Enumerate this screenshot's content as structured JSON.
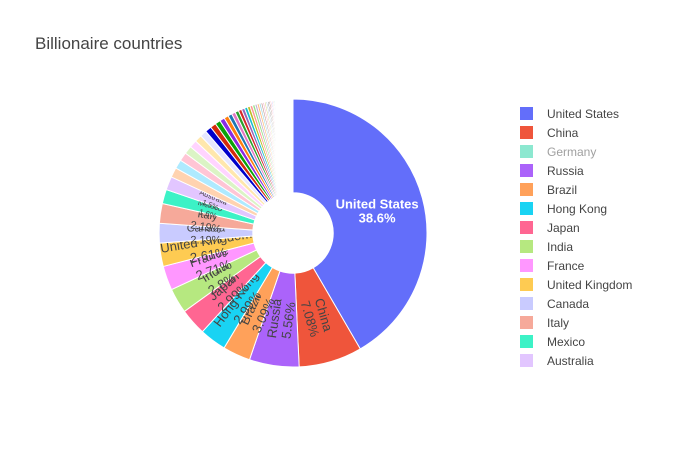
{
  "chart_data": {
    "type": "pie",
    "title": "Billionaire countries",
    "hole": 0.3,
    "legend_position": "right",
    "slices": [
      {
        "label": "United States",
        "percent": 38.6,
        "color": "#636efa"
      },
      {
        "label": "China",
        "percent": 7.08,
        "color": "#ef553b"
      },
      {
        "label": "Russia",
        "percent": 5.56,
        "color": "#ab63fa"
      },
      {
        "label": "Brazil",
        "percent": 3.09,
        "color": "#ffa15a"
      },
      {
        "label": "Hong Kong",
        "percent": 2.99,
        "color": "#19d3f3"
      },
      {
        "label": "Japan",
        "percent": 2.99,
        "color": "#ff6692"
      },
      {
        "label": "India",
        "percent": 2.8,
        "color": "#b6e880"
      },
      {
        "label": "France",
        "percent": 2.71,
        "color": "#ff97ff"
      },
      {
        "label": "United Kingdom",
        "percent": 2.61,
        "color": "#fecb52"
      },
      {
        "label": "Canada",
        "percent": 2.19,
        "color": "#c9cbff"
      },
      {
        "label": "Italy",
        "percent": 2.19,
        "color": "#f6a99a"
      },
      {
        "label": "Mexico",
        "percent": 1.6,
        "color": "#3cf2c6"
      },
      {
        "label": "Australia",
        "percent": 1.5,
        "color": "#e2c6ff"
      },
      {
        "label": "",
        "percent": 1.1,
        "color": "#ffd3b0"
      },
      {
        "label": "",
        "percent": 1.0,
        "color": "#aeeaff"
      },
      {
        "label": "",
        "percent": 0.95,
        "color": "#ffc5d5"
      },
      {
        "label": "",
        "percent": 0.9,
        "color": "#dbf4c5"
      },
      {
        "label": "",
        "percent": 0.85,
        "color": "#ffd4ff"
      },
      {
        "label": "",
        "percent": 0.8,
        "color": "#ffe7ad"
      },
      {
        "label": "",
        "percent": 0.75,
        "color": "#e6e7ff"
      },
      {
        "label": "",
        "percent": 0.7,
        "color": "#0000cc"
      },
      {
        "label": "",
        "percent": 0.65,
        "color": "#d42b0a"
      },
      {
        "label": "",
        "percent": 0.6,
        "color": "#0aa30a"
      },
      {
        "label": "",
        "percent": 0.55,
        "color": "#8a2be2"
      },
      {
        "label": "",
        "percent": 0.5,
        "color": "#ff7f0e"
      },
      {
        "label": "",
        "percent": 0.45,
        "color": "#1f77b4"
      },
      {
        "label": "",
        "percent": 0.42,
        "color": "#e377c2"
      },
      {
        "label": "",
        "percent": 0.4,
        "color": "#2ca02c"
      },
      {
        "label": "",
        "percent": 0.37,
        "color": "#d62728"
      },
      {
        "label": "",
        "percent": 0.35,
        "color": "#9467bd"
      },
      {
        "label": "",
        "percent": 0.33,
        "color": "#17becf"
      },
      {
        "label": "",
        "percent": 0.31,
        "color": "#bcbd22"
      },
      {
        "label": "",
        "percent": 0.29,
        "color": "#ff9896"
      },
      {
        "label": "",
        "percent": 0.27,
        "color": "#98df8a"
      },
      {
        "label": "",
        "percent": 0.25,
        "color": "#c5b0d5"
      },
      {
        "label": "",
        "percent": 0.23,
        "color": "#ffbb78"
      },
      {
        "label": "",
        "percent": 0.21,
        "color": "#9edae5"
      },
      {
        "label": "",
        "percent": 0.2,
        "color": "#c49c94"
      },
      {
        "label": "",
        "percent": 0.19,
        "color": "#f7b6d2"
      },
      {
        "label": "",
        "percent": 0.18,
        "color": "#dbdb8d"
      },
      {
        "label": "",
        "percent": 0.17,
        "color": "#aec7e8"
      },
      {
        "label": "",
        "percent": 0.16,
        "color": "#7f7f7f"
      },
      {
        "label": "",
        "percent": 0.15,
        "color": "#8c564b"
      },
      {
        "label": "",
        "percent": 0.14,
        "color": "#ff6692"
      },
      {
        "label": "",
        "percent": 0.13,
        "color": "#636efa"
      },
      {
        "label": "",
        "percent": 0.12,
        "color": "#ef553b"
      },
      {
        "label": "",
        "percent": 0.12,
        "color": "#00cc96"
      },
      {
        "label": "",
        "percent": 0.11,
        "color": "#ab63fa"
      },
      {
        "label": "",
        "percent": 0.11,
        "color": "#ffa15a"
      },
      {
        "label": "",
        "percent": 0.1,
        "color": "#19d3f3"
      },
      {
        "label": "",
        "percent": 0.1,
        "color": "#b6e880"
      },
      {
        "label": "",
        "percent": 0.1,
        "color": "#ff97ff"
      },
      {
        "label": "",
        "percent": 0.09,
        "color": "#fecb52"
      },
      {
        "label": "",
        "percent": 0.09,
        "color": "#c9cbff"
      },
      {
        "label": "",
        "percent": 0.09,
        "color": "#f6a99a"
      },
      {
        "label": "",
        "percent": 0.08,
        "color": "#3cf2c6"
      },
      {
        "label": "",
        "percent": 0.08,
        "color": "#e2c6ff"
      },
      {
        "label": "",
        "percent": 0.08,
        "color": "#ffd3b0"
      },
      {
        "label": "",
        "percent": 0.07,
        "color": "#aeeaff"
      },
      {
        "label": "",
        "percent": 0.07,
        "color": "#ffc5d5"
      },
      {
        "label": "",
        "percent": 0.07,
        "color": "#dbf4c5"
      },
      {
        "label": "",
        "percent": 0.06,
        "color": "#ffd4ff"
      },
      {
        "label": "",
        "percent": 0.06,
        "color": "#ffe7ad"
      },
      {
        "label": "",
        "percent": 0.06,
        "color": "#e6e7ff"
      },
      {
        "label": "",
        "percent": 0.06,
        "color": "#d0d0d0"
      },
      {
        "label": "",
        "percent": 0.05,
        "color": "#d0d0d0"
      },
      {
        "label": "",
        "percent": 0.05,
        "color": "#d0d0d0"
      },
      {
        "label": "",
        "percent": 0.05,
        "color": "#d0d0d0"
      },
      {
        "label": "",
        "percent": 0.05,
        "color": "#d0d0d0"
      },
      {
        "label": "",
        "percent": 0.05,
        "color": "#d0d0d0"
      },
      {
        "label": "",
        "percent": 0.05,
        "color": "#d0d0d0"
      },
      {
        "label": "",
        "percent": 0.04,
        "color": "#d0d0d0"
      },
      {
        "label": "",
        "percent": 0.04,
        "color": "#d0d0d0"
      },
      {
        "label": "",
        "percent": 0.04,
        "color": "#d0d0d0"
      },
      {
        "label": "",
        "percent": 0.04,
        "color": "#d0d0d0"
      },
      {
        "label": "",
        "percent": 0.04,
        "color": "#d0d0d0"
      },
      {
        "label": "",
        "percent": 0.04,
        "color": "#d0d0d0"
      }
    ],
    "hidden_slices": [
      {
        "label": "Germany",
        "color": "#00cc96"
      }
    ]
  }
}
